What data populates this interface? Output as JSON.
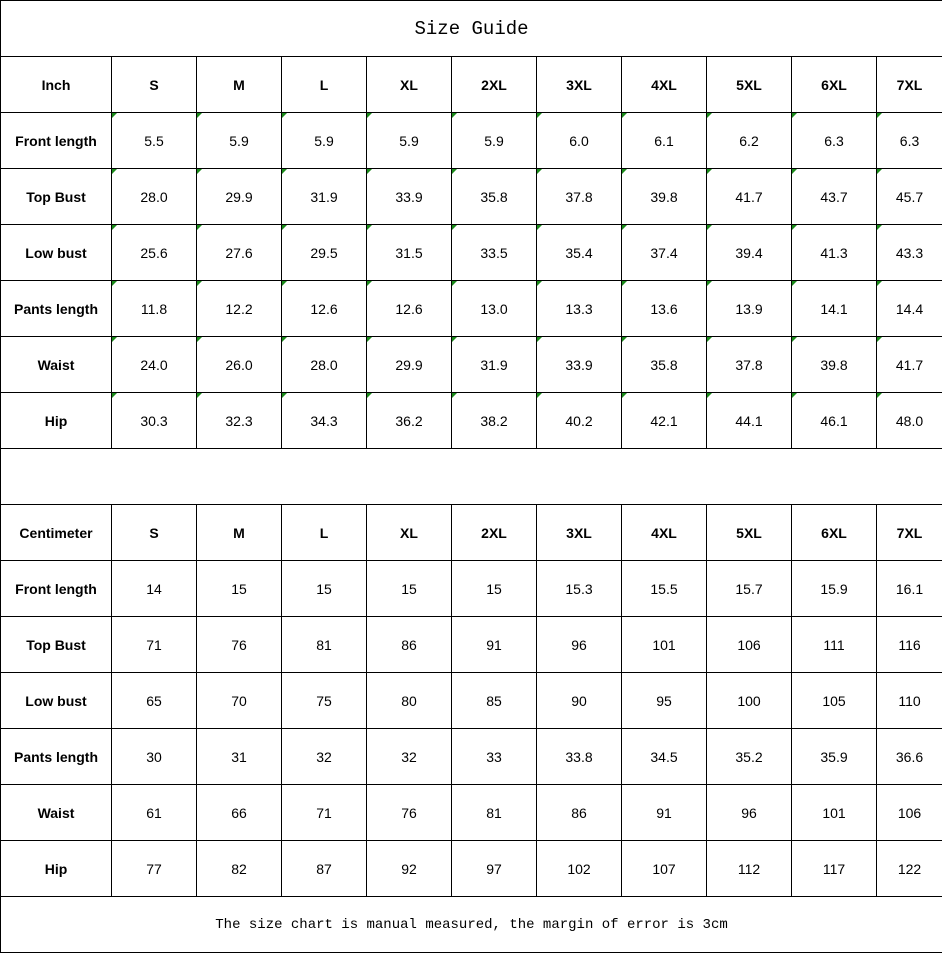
{
  "title": "Size Guide",
  "sizes": [
    "S",
    "M",
    "L",
    "XL",
    "2XL",
    "3XL",
    "4XL",
    "5XL",
    "6XL",
    "7XL"
  ],
  "inch": {
    "unit_label": "Inch",
    "rows": [
      {
        "label": "Front length",
        "values": [
          "5.5",
          "5.9",
          "5.9",
          "5.9",
          "5.9",
          "6.0",
          "6.1",
          "6.2",
          "6.3",
          "6.3"
        ]
      },
      {
        "label": "Top Bust",
        "values": [
          "28.0",
          "29.9",
          "31.9",
          "33.9",
          "35.8",
          "37.8",
          "39.8",
          "41.7",
          "43.7",
          "45.7"
        ]
      },
      {
        "label": "Low bust",
        "values": [
          "25.6",
          "27.6",
          "29.5",
          "31.5",
          "33.5",
          "35.4",
          "37.4",
          "39.4",
          "41.3",
          "43.3"
        ]
      },
      {
        "label": "Pants length",
        "values": [
          "11.8",
          "12.2",
          "12.6",
          "12.6",
          "13.0",
          "13.3",
          "13.6",
          "13.9",
          "14.1",
          "14.4"
        ]
      },
      {
        "label": "Waist",
        "values": [
          "24.0",
          "26.0",
          "28.0",
          "29.9",
          "31.9",
          "33.9",
          "35.8",
          "37.8",
          "39.8",
          "41.7"
        ]
      },
      {
        "label": "Hip",
        "values": [
          "30.3",
          "32.3",
          "34.3",
          "36.2",
          "38.2",
          "40.2",
          "42.1",
          "44.1",
          "46.1",
          "48.0"
        ]
      }
    ]
  },
  "centimeter": {
    "unit_label": "Centimeter",
    "rows": [
      {
        "label": "Front length",
        "values": [
          "14",
          "15",
          "15",
          "15",
          "15",
          "15.3",
          "15.5",
          "15.7",
          "15.9",
          "16.1"
        ]
      },
      {
        "label": "Top Bust",
        "values": [
          "71",
          "76",
          "81",
          "86",
          "91",
          "96",
          "101",
          "106",
          "111",
          "116"
        ]
      },
      {
        "label": "Low bust",
        "values": [
          "65",
          "70",
          "75",
          "80",
          "85",
          "90",
          "95",
          "100",
          "105",
          "110"
        ]
      },
      {
        "label": "Pants length",
        "values": [
          "30",
          "31",
          "32",
          "32",
          "33",
          "33.8",
          "34.5",
          "35.2",
          "35.9",
          "36.6"
        ]
      },
      {
        "label": "Waist",
        "values": [
          "61",
          "66",
          "71",
          "76",
          "81",
          "86",
          "91",
          "96",
          "101",
          "106"
        ]
      },
      {
        "label": "Hip",
        "values": [
          "77",
          "82",
          "87",
          "92",
          "97",
          "102",
          "107",
          "112",
          "117",
          "122"
        ]
      }
    ]
  },
  "note": "The size chart is manual measured, the margin of error is 3cm",
  "colors": {
    "text_number_marker": "#1a8a1a"
  }
}
